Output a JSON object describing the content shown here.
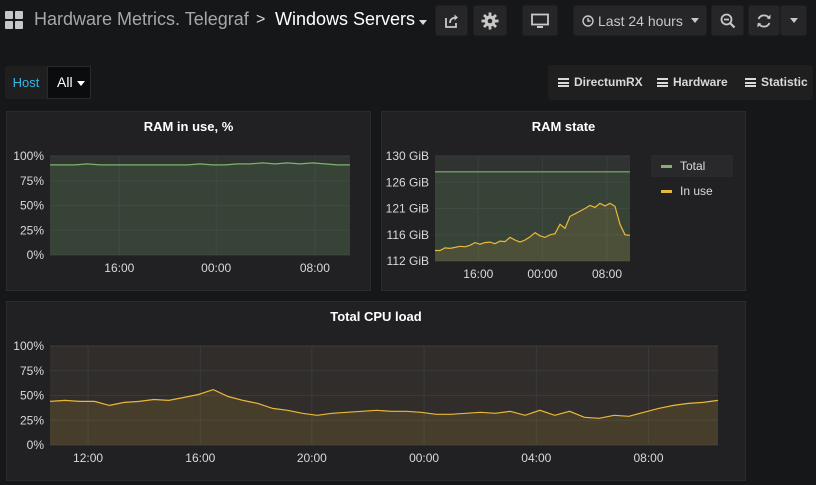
{
  "header": {
    "folder": "Hardware Metrics. Telegraf",
    "separator": ">",
    "title": "Windows Servers",
    "time_range": "Last 24 hours",
    "icons": [
      "grid-icon",
      "share-icon",
      "gear-icon",
      "tv-icon",
      "clock-icon",
      "zoom-out-icon",
      "refresh-icon",
      "chevron-down-icon"
    ]
  },
  "variables": {
    "label": "Host",
    "value": "All"
  },
  "links": [
    {
      "label": "DirectumRX"
    },
    {
      "label": "Hardware"
    },
    {
      "label": "Statistic"
    }
  ],
  "colors": {
    "green": "#7eb26d",
    "yellow": "#eab839",
    "accent_blue": "#33b5e5",
    "grid": "#3a3a3d"
  },
  "ram_use": {
    "title": "RAM in use, %",
    "chart_data": {
      "type": "line",
      "title": "RAM in use, %",
      "yticks": [
        "0%",
        "25%",
        "50%",
        "75%",
        "100%"
      ],
      "xticks": [
        "16:00",
        "00:00",
        "08:00"
      ],
      "ylim": [
        0,
        100
      ],
      "series": [
        {
          "name": "RAM in use",
          "color": "#7eb26d",
          "values": [
            91,
            91,
            91,
            92,
            91,
            91,
            91,
            91,
            91,
            91,
            91,
            91,
            92,
            91,
            91,
            92,
            92,
            93,
            92,
            93,
            92,
            93,
            92,
            91,
            91
          ]
        }
      ]
    }
  },
  "ram_state": {
    "title": "RAM state",
    "legend": [
      {
        "label": "Total",
        "color": "#7eb26d"
      },
      {
        "label": "In use",
        "color": "#eab839"
      }
    ],
    "chart_data": {
      "type": "line",
      "title": "RAM state",
      "yticks": [
        "112 GiB",
        "116 GiB",
        "121 GiB",
        "126 GiB",
        "130 GiB"
      ],
      "xticks": [
        "16:00",
        "00:00",
        "08:00"
      ],
      "ylim": [
        111,
        131
      ],
      "series": [
        {
          "name": "Total",
          "color": "#7eb26d",
          "values": [
            128,
            128,
            128,
            128,
            128,
            128,
            128,
            128,
            128,
            128,
            128,
            128,
            128,
            128,
            128,
            128,
            128,
            128,
            128,
            128,
            128,
            128,
            128,
            128,
            128,
            128,
            128,
            128,
            128,
            128,
            128,
            128,
            128,
            128,
            128,
            128,
            128,
            128,
            128,
            128
          ]
        },
        {
          "name": "In use",
          "color": "#eab839",
          "values": [
            113,
            113,
            113.5,
            113.4,
            113.6,
            113.8,
            113.7,
            114,
            114.5,
            114.2,
            114.5,
            114.6,
            114.3,
            114.8,
            114.7,
            115.5,
            115,
            114.6,
            115,
            115.6,
            116.4,
            115.8,
            115.5,
            116,
            116.2,
            118,
            117.2,
            119.5,
            120,
            120.5,
            121,
            121.6,
            121.2,
            122,
            121.5,
            122,
            121.4,
            118,
            116,
            115.9
          ]
        }
      ]
    }
  },
  "cpu": {
    "title": "Total CPU load",
    "chart_data": {
      "type": "line",
      "title": "Total CPU load",
      "yticks": [
        "0%",
        "25%",
        "50%",
        "75%",
        "100%"
      ],
      "xticks": [
        "12:00",
        "16:00",
        "20:00",
        "00:00",
        "04:00",
        "08:00"
      ],
      "ylim": [
        0,
        100
      ],
      "series": [
        {
          "name": "CPU load",
          "color": "#eab839",
          "values": [
            44,
            45,
            44,
            44,
            40,
            43,
            44,
            46,
            45,
            48,
            51,
            56,
            49,
            45,
            42,
            37,
            35,
            32,
            30,
            32,
            33,
            34,
            35,
            34,
            34,
            33,
            31,
            31,
            32,
            33,
            32,
            34,
            30,
            35,
            30,
            34,
            28,
            27,
            30,
            29,
            33,
            37,
            40,
            42,
            43,
            45
          ]
        }
      ]
    }
  }
}
